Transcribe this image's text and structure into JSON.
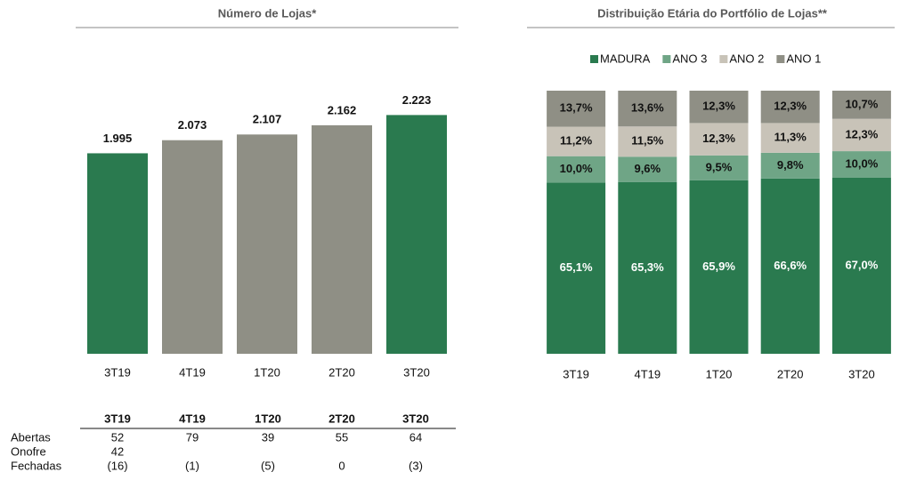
{
  "chart_data": [
    {
      "type": "bar",
      "title": "Número de Lojas*",
      "categories": [
        "3T19",
        "4T19",
        "1T20",
        "2T20",
        "3T20"
      ],
      "values": [
        1995,
        2073,
        2107,
        2162,
        2223
      ],
      "value_labels": [
        "1.995",
        "2.073",
        "2.107",
        "2.162",
        "2.223"
      ],
      "colors": [
        "#2a7a4f",
        "#8f8f85",
        "#8f8f85",
        "#8f8f85",
        "#2a7a4f"
      ],
      "ylim": [
        800,
        2400
      ]
    },
    {
      "type": "stacked_bar",
      "title": "Distribuição Etária do Portfólio de Lojas**",
      "categories": [
        "3T19",
        "4T19",
        "1T20",
        "2T20",
        "3T20"
      ],
      "series": [
        {
          "name": "MADURA",
          "color": "#2a7a4f",
          "label_color": "#ffffff",
          "values": [
            65.1,
            65.3,
            65.9,
            66.6,
            67.0
          ],
          "value_labels": [
            "65,1%",
            "65,3%",
            "65,9%",
            "66,6%",
            "67,0%"
          ]
        },
        {
          "name": "ANO 3",
          "color": "#6fa586",
          "label_color": "#111111",
          "values": [
            10.0,
            9.6,
            9.5,
            9.8,
            10.0
          ],
          "value_labels": [
            "10,0%",
            "9,6%",
            "9,5%",
            "9,8%",
            "10,0%"
          ]
        },
        {
          "name": "ANO 2",
          "color": "#c8c3b8",
          "label_color": "#111111",
          "values": [
            11.2,
            11.5,
            12.3,
            11.3,
            12.3
          ],
          "value_labels": [
            "11,2%",
            "11,5%",
            "12,3%",
            "11,3%",
            "12,3%"
          ]
        },
        {
          "name": "ANO 1",
          "color": "#8f8f85",
          "label_color": "#111111",
          "values": [
            13.7,
            13.6,
            12.3,
            12.3,
            10.7
          ],
          "value_labels": [
            "13,7%",
            "13,6%",
            "12,3%",
            "12,3%",
            "10,7%"
          ]
        }
      ],
      "ylim": [
        0,
        100
      ],
      "legend": "top"
    }
  ],
  "table": {
    "columns": [
      "3T19",
      "4T19",
      "1T20",
      "2T20",
      "3T20"
    ],
    "rows": [
      {
        "label": "Abertas",
        "values": [
          "52",
          "79",
          "39",
          "55",
          "64"
        ]
      },
      {
        "label": "Onofre",
        "values": [
          "42"
        ]
      },
      {
        "label": "Fechadas",
        "values": [
          "(16)",
          "(1)",
          "(5)",
          "0",
          "(3)"
        ]
      }
    ]
  }
}
